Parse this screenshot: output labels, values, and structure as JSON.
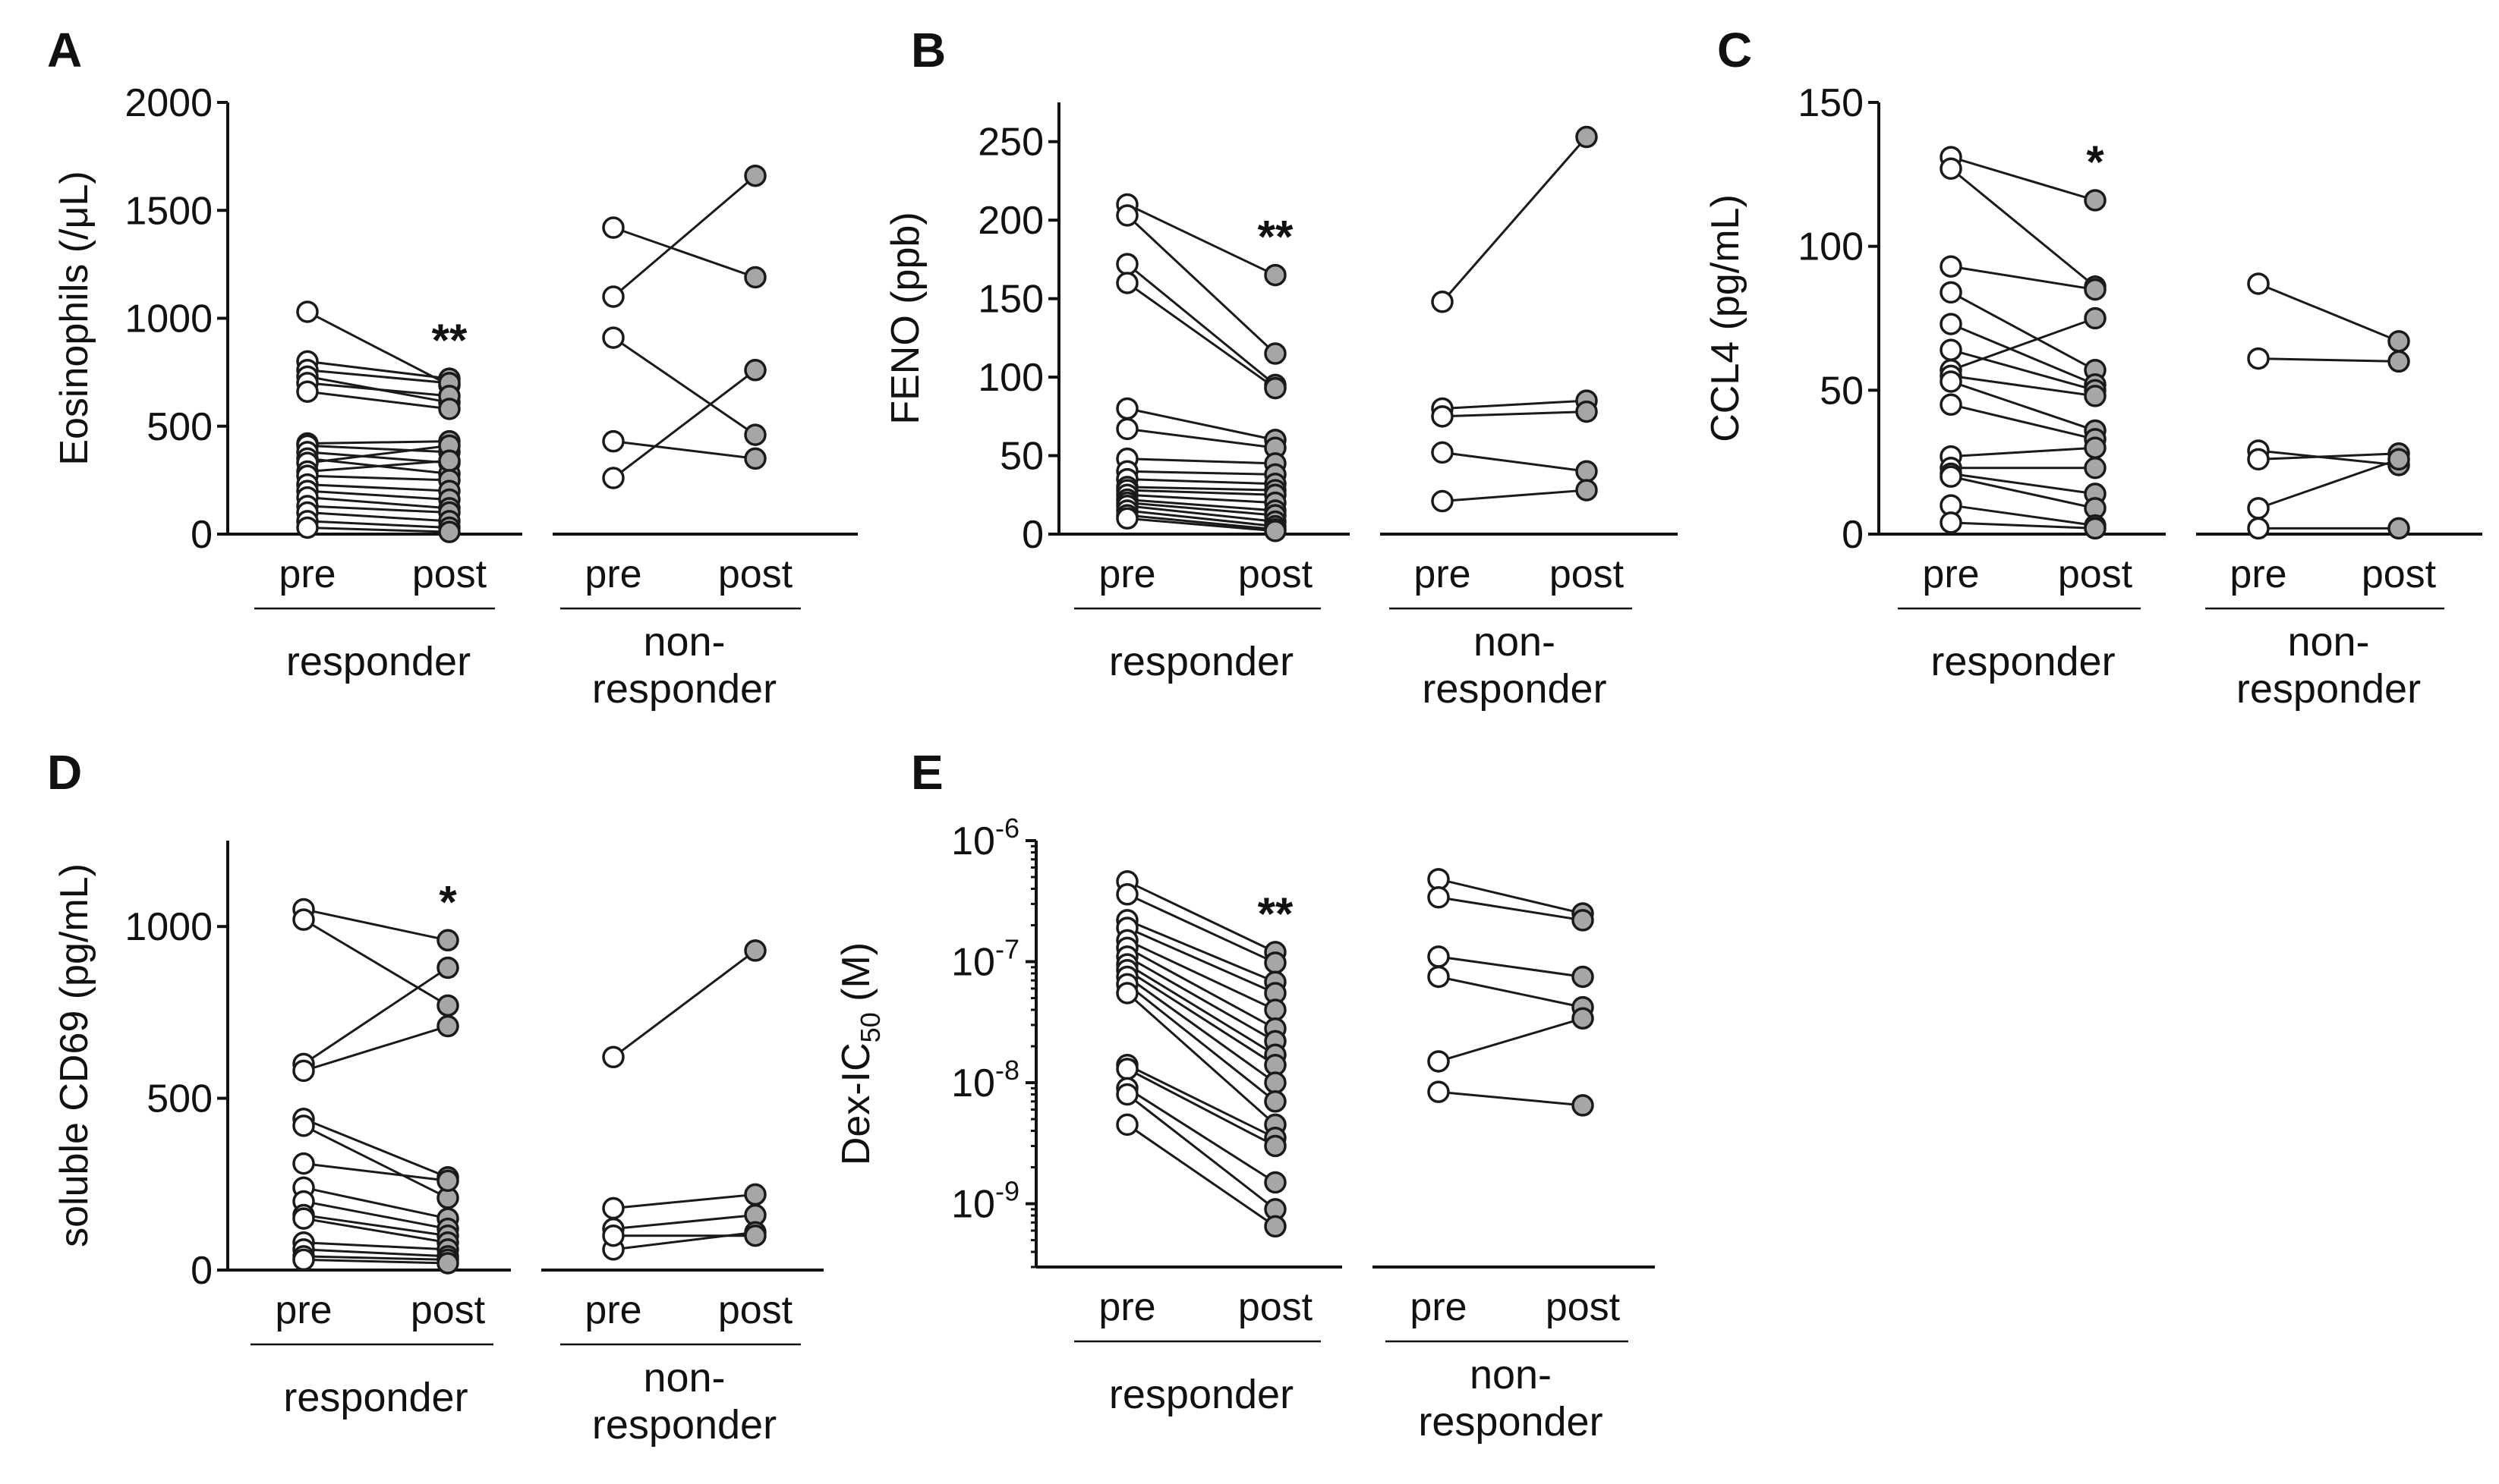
{
  "figure_layout": {
    "tick_labels": [
      "pre",
      "post"
    ],
    "groups": [
      "responder",
      "non-responder"
    ],
    "non_responder_lines": [
      "non-",
      "responder"
    ],
    "marker_colors": {
      "pre": "#ffffff",
      "post": "#a6a6a6",
      "stroke": "#1a1a1a"
    }
  },
  "chart_data": [
    {
      "panel": "A",
      "type": "scatter",
      "xlabel": "",
      "ylabel": "Eosinophils (/μL)",
      "ylim": [
        0,
        2000
      ],
      "yticks": [
        0,
        500,
        1000,
        1500,
        2000
      ],
      "yscale": "linear",
      "categories": [
        "pre",
        "post"
      ],
      "significance": "**",
      "responder": [
        [
          1030,
          690
        ],
        [
          800,
          720
        ],
        [
          760,
          700
        ],
        [
          730,
          610
        ],
        [
          700,
          640
        ],
        [
          660,
          580
        ],
        [
          420,
          430
        ],
        [
          410,
          380
        ],
        [
          380,
          330
        ],
        [
          350,
          280
        ],
        [
          330,
          410
        ],
        [
          290,
          340
        ],
        [
          270,
          250
        ],
        [
          230,
          200
        ],
        [
          200,
          160
        ],
        [
          170,
          120
        ],
        [
          130,
          100
        ],
        [
          100,
          60
        ],
        [
          60,
          30
        ],
        [
          30,
          10
        ]
      ],
      "non_responder": [
        [
          1420,
          1190
        ],
        [
          1100,
          1660
        ],
        [
          910,
          460
        ],
        [
          430,
          350
        ],
        [
          260,
          760
        ]
      ]
    },
    {
      "panel": "B",
      "type": "scatter",
      "xlabel": "",
      "ylabel": "FENO (ppb)",
      "ylim": [
        0,
        275
      ],
      "yticks": [
        0,
        50,
        100,
        150,
        200,
        250
      ],
      "yscale": "linear",
      "categories": [
        "pre",
        "post"
      ],
      "significance": "**",
      "responder": [
        [
          210,
          165
        ],
        [
          203,
          115
        ],
        [
          172,
          95
        ],
        [
          160,
          93
        ],
        [
          80,
          60
        ],
        [
          67,
          55
        ],
        [
          48,
          45
        ],
        [
          40,
          38
        ],
        [
          35,
          32
        ],
        [
          30,
          28
        ],
        [
          28,
          25
        ],
        [
          25,
          20
        ],
        [
          22,
          15
        ],
        [
          20,
          12
        ],
        [
          18,
          8
        ],
        [
          15,
          5
        ],
        [
          12,
          3
        ],
        [
          10,
          2
        ]
      ],
      "non_responder": [
        [
          148,
          253
        ],
        [
          80,
          85
        ],
        [
          75,
          78
        ],
        [
          52,
          40
        ],
        [
          21,
          28
        ]
      ]
    },
    {
      "panel": "C",
      "type": "scatter",
      "xlabel": "",
      "ylabel": "CCL4 (pg/mL)",
      "ylim": [
        0,
        150
      ],
      "yticks": [
        0,
        50,
        100,
        150
      ],
      "yscale": "linear",
      "categories": [
        "pre",
        "post"
      ],
      "significance": "*",
      "responder": [
        [
          131,
          116
        ],
        [
          127,
          86
        ],
        [
          93,
          85
        ],
        [
          84,
          57
        ],
        [
          73,
          52
        ],
        [
          64,
          50
        ],
        [
          57,
          75
        ],
        [
          55,
          48
        ],
        [
          53,
          36
        ],
        [
          45,
          33
        ],
        [
          27,
          30
        ],
        [
          23,
          23
        ],
        [
          21,
          14
        ],
        [
          20,
          9
        ],
        [
          10,
          3
        ],
        [
          4,
          2
        ]
      ],
      "non_responder": [
        [
          87,
          67
        ],
        [
          61,
          60
        ],
        [
          29,
          24
        ],
        [
          26,
          28
        ],
        [
          9,
          26
        ],
        [
          2,
          2
        ]
      ]
    },
    {
      "panel": "D",
      "type": "scatter",
      "xlabel": "",
      "ylabel": "soluble CD69 (pg/mL)",
      "ylim": [
        0,
        1250
      ],
      "yticks": [
        0,
        500,
        1000
      ],
      "yscale": "linear",
      "categories": [
        "pre",
        "post"
      ],
      "significance": "*",
      "responder": [
        [
          1050,
          960
        ],
        [
          1020,
          770
        ],
        [
          600,
          880
        ],
        [
          580,
          710
        ],
        [
          440,
          270
        ],
        [
          420,
          210
        ],
        [
          310,
          260
        ],
        [
          240,
          150
        ],
        [
          200,
          120
        ],
        [
          160,
          100
        ],
        [
          150,
          80
        ],
        [
          80,
          60
        ],
        [
          60,
          40
        ],
        [
          40,
          30
        ],
        [
          30,
          20
        ]
      ],
      "non_responder": [
        [
          620,
          930
        ],
        [
          180,
          220
        ],
        [
          120,
          160
        ],
        [
          60,
          110
        ],
        [
          100,
          100
        ]
      ]
    },
    {
      "panel": "E",
      "type": "scatter",
      "xlabel": "",
      "ylabel": "Dex-IC50 (M)",
      "ylabel_main": "Dex-IC",
      "ylabel_sub": "50",
      "ylabel_unit": " (M)",
      "ylim": [
        3e-10,
        1e-06
      ],
      "yticks": [
        1e-09,
        1e-08,
        1e-07,
        1e-06
      ],
      "yscale": "log",
      "ytick_labels": [
        {
          "base": "10",
          "exp": "-9"
        },
        {
          "base": "10",
          "exp": "-8"
        },
        {
          "base": "10",
          "exp": "-7"
        },
        {
          "base": "10",
          "exp": "-6"
        }
      ],
      "categories": [
        "pre",
        "post"
      ],
      "significance": "**",
      "responder": [
        [
          4.6e-07,
          1.2e-07
        ],
        [
          3.6e-07,
          9.8e-08
        ],
        [
          2.2e-07,
          6.8e-08
        ],
        [
          1.9e-07,
          5.5e-08
        ],
        [
          1.5e-07,
          4e-08
        ],
        [
          1.3e-07,
          2.8e-08
        ],
        [
          1.1e-07,
          2.2e-08
        ],
        [
          9.5e-08,
          1.7e-08
        ],
        [
          8.5e-08,
          1.4e-08
        ],
        [
          7.5e-08,
          1e-08
        ],
        [
          6.5e-08,
          7e-09
        ],
        [
          5.5e-08,
          4.5e-09
        ],
        [
          1.4e-08,
          3.5e-09
        ],
        [
          1.3e-08,
          3e-09
        ],
        [
          9e-09,
          1.5e-09
        ],
        [
          8e-09,
          9e-10
        ],
        [
          4.5e-09,
          6.5e-10
        ]
      ],
      "non_responder": [
        [
          4.8e-07,
          2.5e-07
        ],
        [
          3.4e-07,
          2.2e-07
        ],
        [
          1.1e-07,
          7.5e-08
        ],
        [
          7.5e-08,
          4.2e-08
        ],
        [
          1.5e-08,
          3.4e-08
        ],
        [
          8.4e-09,
          6.5e-09
        ]
      ]
    }
  ]
}
